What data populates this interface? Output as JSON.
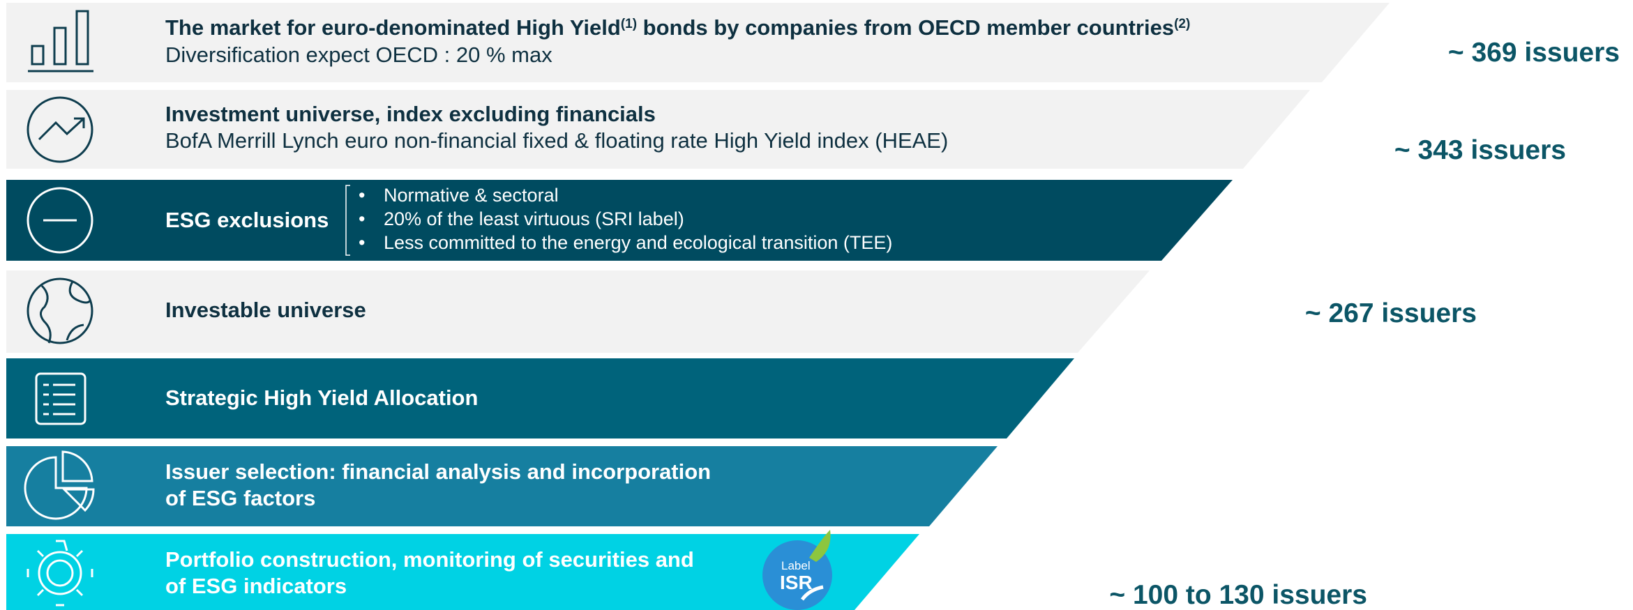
{
  "rows": [
    {
      "title": [
        "The market for euro-denominated High Yield",
        "(1)",
        " bonds by companies from OECD member countries",
        "(2)"
      ],
      "subtitle": "Diversification expect OECD : 20 % max"
    },
    {
      "title": [
        "Investment universe, index excluding financials"
      ],
      "subtitle": "BofA Merrill Lynch euro non-financial fixed & floating rate High Yield index (HEAE)"
    },
    {
      "title": [
        "ESG exclusions"
      ],
      "bullets": [
        "Normative & sectoral",
        "20% of the least virtuous (SRI label)",
        "Less committed to the energy and ecological transition (TEE)"
      ]
    },
    {
      "title": [
        "Investable universe"
      ]
    },
    {
      "title": [
        "Strategic High Yield Allocation"
      ]
    },
    {
      "title": [
        "Issuer selection: financial analysis and incorporation",
        "of ESG factors"
      ]
    },
    {
      "title": [
        "Portfolio construction, monitoring of securities and",
        "of ESG indicators"
      ]
    }
  ],
  "badge": {
    "top": "Label",
    "bottom": "ISR"
  },
  "issuers": [
    "~ 369 issuers",
    "~ 343 issuers",
    "~ 267 issuers",
    "~ 100 to 130 issuers"
  ]
}
